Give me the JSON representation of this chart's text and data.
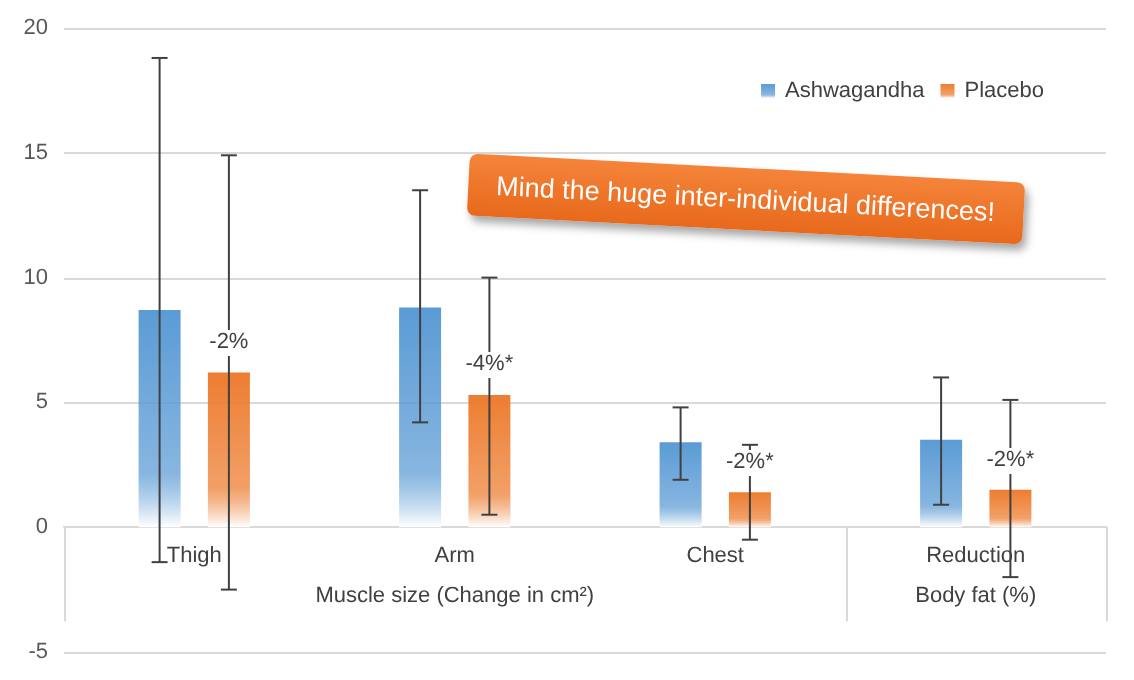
{
  "chart_data": {
    "type": "bar",
    "categories": [
      "Thigh",
      "Arm",
      "Chest",
      "Reduction"
    ],
    "series": [
      {
        "name": "Ashwagandha",
        "color": "#5b9bd5",
        "values": [
          8.7,
          8.8,
          3.4,
          3.5
        ],
        "errors": [
          [
            -1.4,
            18.8
          ],
          [
            4.2,
            13.5
          ],
          [
            1.9,
            4.8
          ],
          [
            0.9,
            6.0
          ]
        ]
      },
      {
        "name": "Placebo",
        "color": "#ed7d31",
        "values": [
          6.2,
          5.3,
          1.4,
          1.5
        ],
        "errors": [
          [
            -2.5,
            14.9
          ],
          [
            0.5,
            10.0
          ],
          [
            -0.5,
            3.3
          ],
          [
            -2.0,
            5.1
          ]
        ]
      }
    ],
    "ylim": [
      -5,
      20
    ],
    "yticks": [
      -5,
      0,
      5,
      10,
      15,
      20
    ],
    "grid": "y",
    "legend": "top right",
    "annotations": [
      "Mind the huge inter-individual differences!",
      "Muscle size (Change in cm²)",
      "Body fat (%)",
      "-2%",
      "-4%*",
      "-2%*",
      "-2%*"
    ]
  }
}
